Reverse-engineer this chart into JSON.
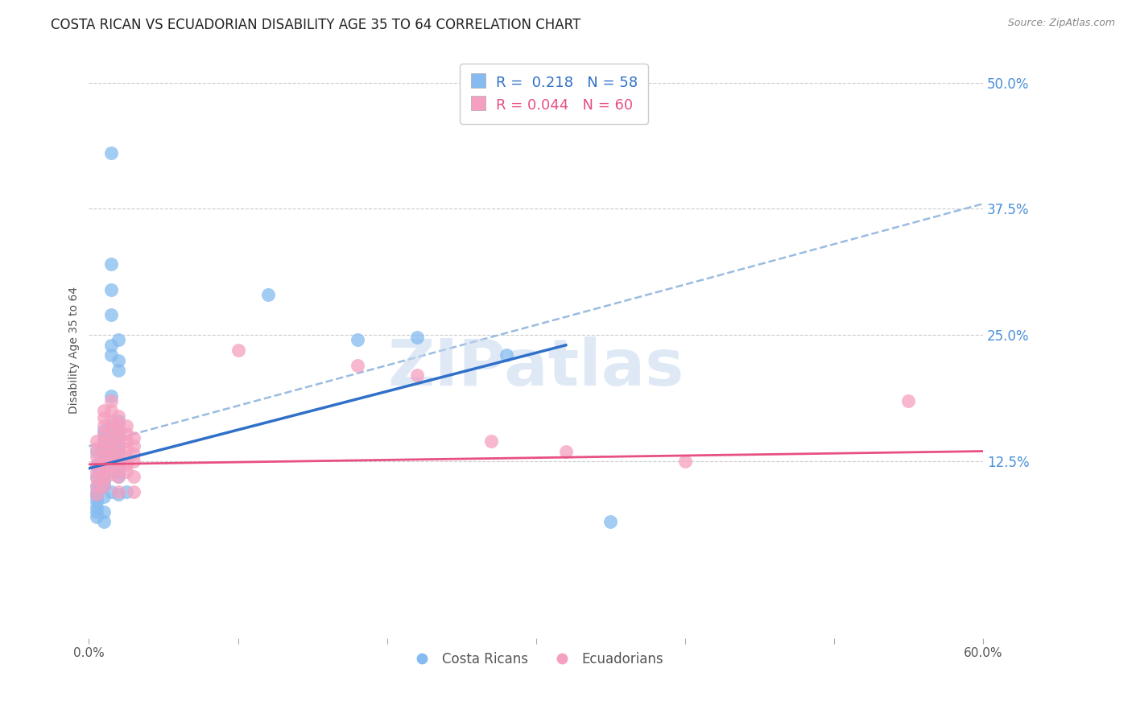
{
  "title": "COSTA RICAN VS ECUADORIAN DISABILITY AGE 35 TO 64 CORRELATION CHART",
  "source": "Source: ZipAtlas.com",
  "ylabel": "Disability Age 35 to 64",
  "xlim": [
    0.0,
    0.6
  ],
  "ylim": [
    -0.05,
    0.52
  ],
  "ytick_positions": [
    0.125,
    0.25,
    0.375,
    0.5
  ],
  "ytick_labels": [
    "12.5%",
    "25.0%",
    "37.5%",
    "50.0%"
  ],
  "watermark": "ZIPatlas",
  "legend_blue_rval": "0.218",
  "legend_blue_nval": "58",
  "legend_pink_rval": "0.044",
  "legend_pink_nval": "60",
  "legend_label_blue": "Costa Ricans",
  "legend_label_pink": "Ecuadorians",
  "blue_color": "#85BBF0",
  "pink_color": "#F5A0C0",
  "blue_line_color": "#3070C8",
  "pink_line_color": "#E85080",
  "dashed_line_color": "#9BBCE0",
  "title_fontsize": 12,
  "axis_label_fontsize": 10,
  "tick_fontsize": 11,
  "blue_scatter": [
    [
      0.005,
      0.135
    ],
    [
      0.005,
      0.12
    ],
    [
      0.005,
      0.11
    ],
    [
      0.005,
      0.1
    ],
    [
      0.005,
      0.095
    ],
    [
      0.005,
      0.09
    ],
    [
      0.005,
      0.085
    ],
    [
      0.005,
      0.08
    ],
    [
      0.005,
      0.075
    ],
    [
      0.005,
      0.07
    ],
    [
      0.01,
      0.155
    ],
    [
      0.01,
      0.148
    ],
    [
      0.01,
      0.14
    ],
    [
      0.01,
      0.135
    ],
    [
      0.01,
      0.13
    ],
    [
      0.01,
      0.125
    ],
    [
      0.01,
      0.12
    ],
    [
      0.01,
      0.115
    ],
    [
      0.01,
      0.11
    ],
    [
      0.01,
      0.105
    ],
    [
      0.01,
      0.1
    ],
    [
      0.01,
      0.09
    ],
    [
      0.01,
      0.075
    ],
    [
      0.01,
      0.065
    ],
    [
      0.015,
      0.43
    ],
    [
      0.015,
      0.32
    ],
    [
      0.015,
      0.295
    ],
    [
      0.015,
      0.27
    ],
    [
      0.015,
      0.24
    ],
    [
      0.015,
      0.23
    ],
    [
      0.015,
      0.19
    ],
    [
      0.015,
      0.16
    ],
    [
      0.015,
      0.15
    ],
    [
      0.015,
      0.145
    ],
    [
      0.015,
      0.14
    ],
    [
      0.015,
      0.135
    ],
    [
      0.015,
      0.125
    ],
    [
      0.015,
      0.115
    ],
    [
      0.015,
      0.095
    ],
    [
      0.02,
      0.245
    ],
    [
      0.02,
      0.225
    ],
    [
      0.02,
      0.215
    ],
    [
      0.02,
      0.165
    ],
    [
      0.02,
      0.155
    ],
    [
      0.02,
      0.148
    ],
    [
      0.02,
      0.14
    ],
    [
      0.02,
      0.135
    ],
    [
      0.02,
      0.128
    ],
    [
      0.02,
      0.12
    ],
    [
      0.02,
      0.115
    ],
    [
      0.02,
      0.11
    ],
    [
      0.02,
      0.092
    ],
    [
      0.025,
      0.095
    ],
    [
      0.12,
      0.29
    ],
    [
      0.18,
      0.245
    ],
    [
      0.22,
      0.248
    ],
    [
      0.28,
      0.23
    ],
    [
      0.35,
      0.065
    ]
  ],
  "pink_scatter": [
    [
      0.005,
      0.145
    ],
    [
      0.005,
      0.138
    ],
    [
      0.005,
      0.13
    ],
    [
      0.005,
      0.122
    ],
    [
      0.005,
      0.115
    ],
    [
      0.005,
      0.108
    ],
    [
      0.005,
      0.1
    ],
    [
      0.005,
      0.092
    ],
    [
      0.01,
      0.175
    ],
    [
      0.01,
      0.168
    ],
    [
      0.01,
      0.16
    ],
    [
      0.01,
      0.152
    ],
    [
      0.01,
      0.145
    ],
    [
      0.01,
      0.138
    ],
    [
      0.01,
      0.13
    ],
    [
      0.01,
      0.122
    ],
    [
      0.01,
      0.115
    ],
    [
      0.01,
      0.108
    ],
    [
      0.01,
      0.1
    ],
    [
      0.015,
      0.185
    ],
    [
      0.015,
      0.175
    ],
    [
      0.015,
      0.165
    ],
    [
      0.015,
      0.158
    ],
    [
      0.015,
      0.15
    ],
    [
      0.015,
      0.142
    ],
    [
      0.015,
      0.135
    ],
    [
      0.015,
      0.128
    ],
    [
      0.015,
      0.12
    ],
    [
      0.015,
      0.112
    ],
    [
      0.02,
      0.17
    ],
    [
      0.02,
      0.162
    ],
    [
      0.02,
      0.155
    ],
    [
      0.02,
      0.148
    ],
    [
      0.02,
      0.14
    ],
    [
      0.02,
      0.132
    ],
    [
      0.02,
      0.125
    ],
    [
      0.02,
      0.118
    ],
    [
      0.02,
      0.11
    ],
    [
      0.02,
      0.095
    ],
    [
      0.025,
      0.16
    ],
    [
      0.025,
      0.152
    ],
    [
      0.025,
      0.145
    ],
    [
      0.025,
      0.138
    ],
    [
      0.025,
      0.13
    ],
    [
      0.025,
      0.122
    ],
    [
      0.025,
      0.115
    ],
    [
      0.03,
      0.148
    ],
    [
      0.03,
      0.14
    ],
    [
      0.03,
      0.132
    ],
    [
      0.03,
      0.125
    ],
    [
      0.03,
      0.11
    ],
    [
      0.03,
      0.095
    ],
    [
      0.1,
      0.235
    ],
    [
      0.18,
      0.22
    ],
    [
      0.22,
      0.21
    ],
    [
      0.27,
      0.145
    ],
    [
      0.32,
      0.135
    ],
    [
      0.4,
      0.125
    ],
    [
      0.55,
      0.185
    ]
  ],
  "blue_line_x": [
    0.0,
    0.32
  ],
  "blue_line_y": [
    0.118,
    0.24
  ],
  "pink_line_x": [
    0.0,
    0.6
  ],
  "pink_line_y": [
    0.122,
    0.135
  ],
  "dashed_line_x": [
    0.0,
    0.6
  ],
  "dashed_line_y": [
    0.14,
    0.38
  ]
}
